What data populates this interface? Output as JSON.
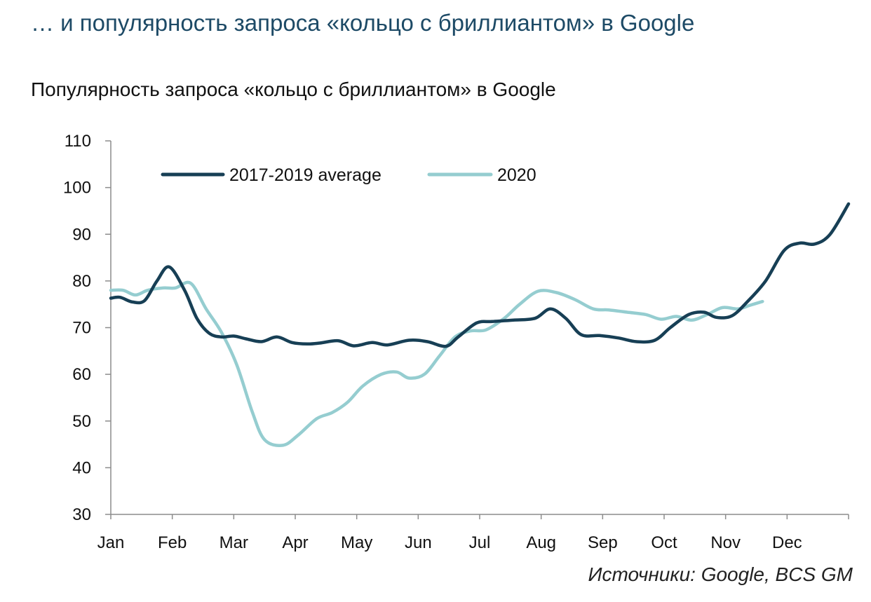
{
  "slide_title": "… и популярность запроса «кольцо с бриллиантом» в Google",
  "source": "Источники: Google, BCS GM",
  "chart_data": {
    "type": "line",
    "title": "Популярность запроса «кольцо с бриллиантом» в Google",
    "xlabel": "",
    "ylabel": "",
    "ylim": [
      30,
      110
    ],
    "yticks": [
      30,
      40,
      50,
      60,
      70,
      80,
      90,
      100,
      110
    ],
    "month_labels": [
      "Jan",
      "Feb",
      "Mar",
      "Apr",
      "May",
      "Jun",
      "Jul",
      "Aug",
      "Sep",
      "Oct",
      "Nov",
      "Dec"
    ],
    "legend_position": "top-left",
    "grid": false,
    "x_unit": "month (1 = Jan, 13 = end of Dec)",
    "series": [
      {
        "name": "2017-2019 average",
        "color": "#173f55",
        "points": [
          [
            1.0,
            76.3
          ],
          [
            1.15,
            76.5
          ],
          [
            1.35,
            75.5
          ],
          [
            1.55,
            75.8
          ],
          [
            1.75,
            80.0
          ],
          [
            1.95,
            83.0
          ],
          [
            2.2,
            78.0
          ],
          [
            2.4,
            72.0
          ],
          [
            2.6,
            68.8
          ],
          [
            2.8,
            68.0
          ],
          [
            3.0,
            68.2
          ],
          [
            3.2,
            67.6
          ],
          [
            3.45,
            67.0
          ],
          [
            3.7,
            68.0
          ],
          [
            3.95,
            66.8
          ],
          [
            4.2,
            66.5
          ],
          [
            4.4,
            66.7
          ],
          [
            4.7,
            67.2
          ],
          [
            4.95,
            66.1
          ],
          [
            5.25,
            66.8
          ],
          [
            5.5,
            66.3
          ],
          [
            5.85,
            67.3
          ],
          [
            6.15,
            67.0
          ],
          [
            6.45,
            66.0
          ],
          [
            6.65,
            68.0
          ],
          [
            6.95,
            71.0
          ],
          [
            7.2,
            71.3
          ],
          [
            7.55,
            71.6
          ],
          [
            7.9,
            72.0
          ],
          [
            8.15,
            74.0
          ],
          [
            8.4,
            72.0
          ],
          [
            8.65,
            68.5
          ],
          [
            8.95,
            68.3
          ],
          [
            9.25,
            67.8
          ],
          [
            9.55,
            67.0
          ],
          [
            9.85,
            67.3
          ],
          [
            10.1,
            70.0
          ],
          [
            10.4,
            72.8
          ],
          [
            10.65,
            73.3
          ],
          [
            10.85,
            72.2
          ],
          [
            11.1,
            72.5
          ],
          [
            11.35,
            75.5
          ],
          [
            11.65,
            80.0
          ],
          [
            11.95,
            86.5
          ],
          [
            12.2,
            88.1
          ],
          [
            12.45,
            87.9
          ],
          [
            12.7,
            90.0
          ],
          [
            13.0,
            96.5
          ]
        ]
      },
      {
        "name": "2020",
        "color": "#95cdd0",
        "points": [
          [
            1.0,
            78.0
          ],
          [
            1.2,
            78.0
          ],
          [
            1.4,
            77.0
          ],
          [
            1.6,
            78.0
          ],
          [
            1.85,
            78.5
          ],
          [
            2.05,
            78.5
          ],
          [
            2.3,
            79.5
          ],
          [
            2.55,
            74.0
          ],
          [
            2.8,
            69.0
          ],
          [
            3.05,
            62.0
          ],
          [
            3.3,
            52.0
          ],
          [
            3.5,
            46.0
          ],
          [
            3.8,
            44.8
          ],
          [
            4.05,
            47.0
          ],
          [
            4.35,
            50.5
          ],
          [
            4.6,
            51.8
          ],
          [
            4.85,
            54.0
          ],
          [
            5.1,
            57.5
          ],
          [
            5.4,
            60.0
          ],
          [
            5.65,
            60.5
          ],
          [
            5.85,
            59.2
          ],
          [
            6.1,
            60.0
          ],
          [
            6.35,
            64.0
          ],
          [
            6.6,
            68.0
          ],
          [
            6.85,
            69.3
          ],
          [
            7.1,
            69.5
          ],
          [
            7.4,
            72.0
          ],
          [
            7.65,
            75.0
          ],
          [
            7.95,
            77.8
          ],
          [
            8.25,
            77.5
          ],
          [
            8.55,
            76.0
          ],
          [
            8.85,
            74.0
          ],
          [
            9.1,
            73.8
          ],
          [
            9.4,
            73.3
          ],
          [
            9.7,
            72.8
          ],
          [
            9.95,
            71.8
          ],
          [
            10.2,
            72.4
          ],
          [
            10.45,
            71.6
          ],
          [
            10.7,
            72.8
          ],
          [
            10.95,
            74.3
          ],
          [
            11.2,
            74.0
          ],
          [
            11.4,
            74.8
          ],
          [
            11.6,
            75.6
          ]
        ]
      }
    ]
  }
}
